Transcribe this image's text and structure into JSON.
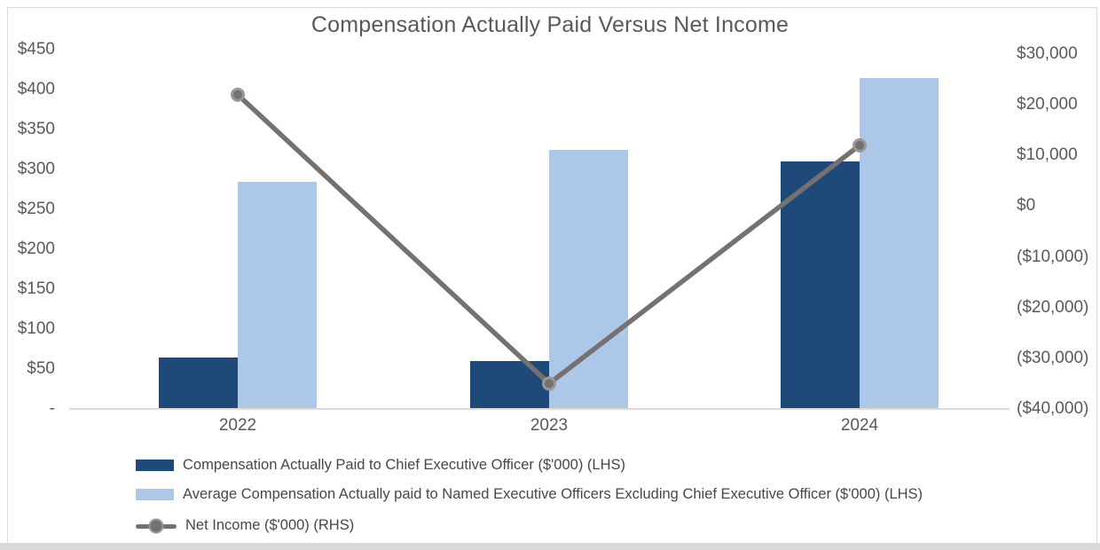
{
  "chart_data": {
    "type": "bar",
    "subtype": "combo-bar-line-dual-axis",
    "title": "Compensation Actually Paid Versus Net Income",
    "categories": [
      "2022",
      "2023",
      "2024"
    ],
    "series": [
      {
        "name": "Compensation Actually Paid to Chief Executive Officer ($'000) (LHS)",
        "type": "bar",
        "axis": "left",
        "color": "#1F4979",
        "values": [
          65,
          60,
          310
        ]
      },
      {
        "name": "Average Compensation Actually paid to Named Executive Officers Excluding Chief Executive Officer ($'000) (LHS)",
        "type": "bar",
        "axis": "left",
        "color": "#ACC7E7",
        "values": [
          285,
          325,
          415
        ]
      },
      {
        "name": "Net Income ($'000) (RHS)",
        "type": "line",
        "axis": "right",
        "color": "#757171",
        "marker_color": "#757171",
        "values": [
          22000,
          -35000,
          12000
        ]
      }
    ],
    "left_axis": {
      "min": 0,
      "max": 450,
      "tick_labels": [
        "$450",
        "$400",
        "$350",
        "$300",
        "$250",
        "$200",
        "$150",
        "$100",
        "$50",
        "-"
      ]
    },
    "right_axis": {
      "min": -40000,
      "max": 30000,
      "tick_labels": [
        "$30,000",
        "$20,000",
        "$10,000",
        "$0",
        "($10,000)",
        "($20,000)",
        "($30,000)",
        "($40,000)"
      ]
    },
    "grid": false,
    "legend_position": "bottom-left",
    "colors": {
      "text": "#595959",
      "legend_text": "#474747",
      "axis_line": "#D9D9D9",
      "sheet_edge": "#DBDBDB"
    }
  }
}
